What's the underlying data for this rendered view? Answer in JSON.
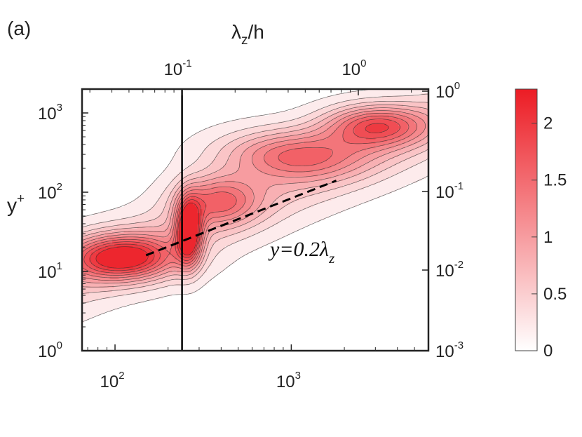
{
  "chart_data": {
    "type": "contour",
    "panel_label": "(a)",
    "title": "",
    "bottom_axis": {
      "label": "",
      "scale": "log",
      "range": [
        65,
        6000
      ],
      "ticks": [
        {
          "base": "10",
          "exp": "2",
          "value": 100
        },
        {
          "base": "10",
          "exp": "3",
          "value": 1000
        }
      ]
    },
    "top_axis": {
      "label_main": "λ",
      "label_sub": "z",
      "label_rest": "/h",
      "scale": "log",
      "ticks": [
        {
          "base": "10",
          "exp": "-1",
          "value": 0.1
        },
        {
          "base": "10",
          "exp": "0",
          "value": 1
        }
      ]
    },
    "left_axis": {
      "label_main": "y",
      "label_sup": "+",
      "scale": "log",
      "range": [
        1,
        2000
      ],
      "ticks": [
        {
          "base": "10",
          "exp": "0",
          "value": 1
        },
        {
          "base": "10",
          "exp": "1",
          "value": 10
        },
        {
          "base": "10",
          "exp": "2",
          "value": 100
        },
        {
          "base": "10",
          "exp": "3",
          "value": 1000
        }
      ]
    },
    "right_axis": {
      "label": "",
      "scale": "log",
      "ticks": [
        {
          "base": "10",
          "exp": "-3",
          "value": 0.001
        },
        {
          "base": "10",
          "exp": "-2",
          "value": 0.01
        },
        {
          "base": "10",
          "exp": "-1",
          "value": 0.1
        },
        {
          "base": "10",
          "exp": "0",
          "value": 1
        }
      ]
    },
    "colorbar": {
      "range": [
        0,
        2.3
      ],
      "ticks": [
        "0",
        "0.5",
        "1",
        "1.5",
        "2"
      ],
      "tick_values": [
        0,
        0.5,
        1,
        1.5,
        2
      ],
      "color_low": "#ffffff",
      "color_high": "#ec1c24"
    },
    "vertical_line_x": 240,
    "fit_line": {
      "text_main": "y=0.2λ",
      "text_sub": "z",
      "x": [
        150,
        1800
      ],
      "y": [
        16,
        140
      ]
    },
    "peaks": [
      {
        "x": 110,
        "y": 15,
        "amp": 2.0,
        "sx": 0.22,
        "sy": 0.2
      },
      {
        "x": 262,
        "y": 32,
        "amp": 2.3,
        "sx": 0.05,
        "sy": 0.28
      },
      {
        "x": 380,
        "y": 80,
        "amp": 1.2,
        "sx": 0.16,
        "sy": 0.22
      },
      {
        "x": 1000,
        "y": 300,
        "amp": 1.3,
        "sx": 0.28,
        "sy": 0.22
      },
      {
        "x": 3000,
        "y": 700,
        "amp": 1.5,
        "sx": 0.2,
        "sy": 0.18
      }
    ],
    "grid": false,
    "legend": "colorbar-right"
  }
}
